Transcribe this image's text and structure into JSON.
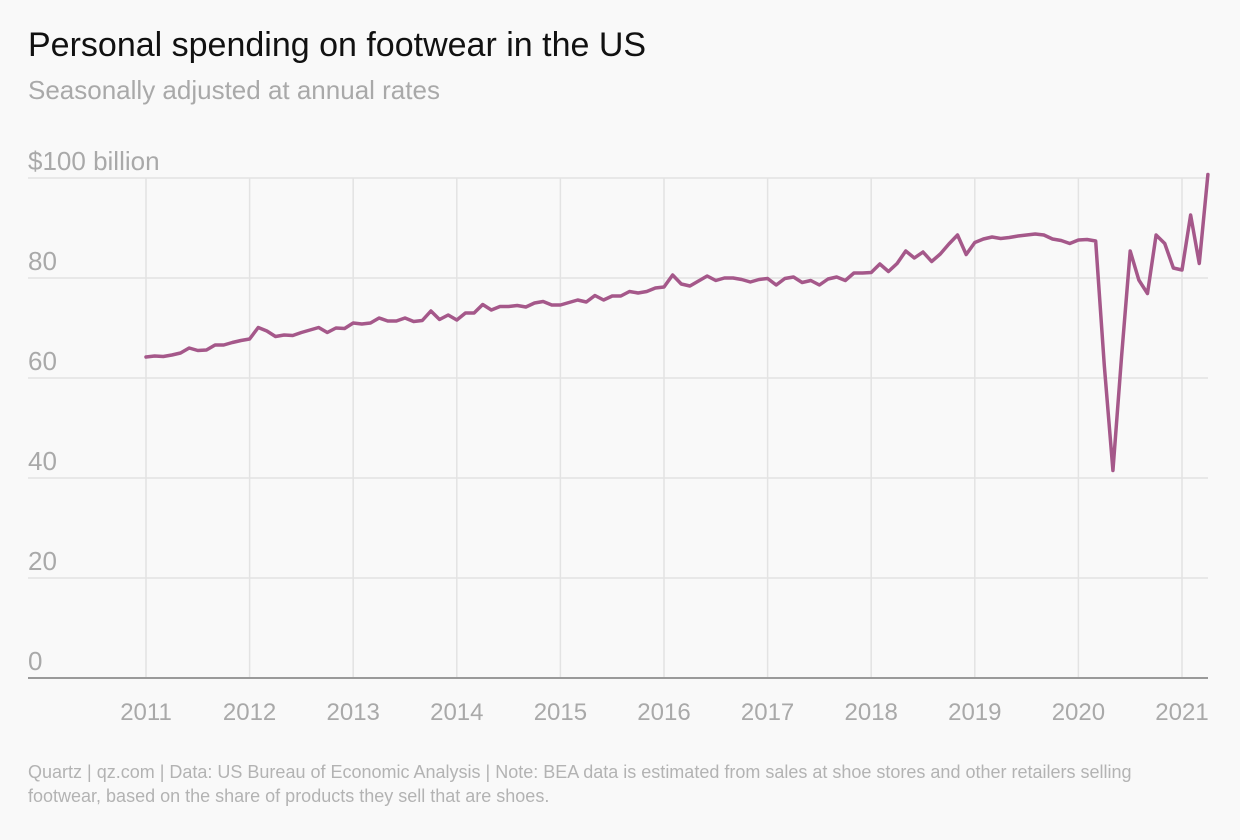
{
  "title": "Personal spending on footwear in the US",
  "subtitle": "Seasonally adjusted at annual rates",
  "source_note": "Quartz | qz.com | Data: US Bureau of Economic Analysis | Note: BEA data is estimated from sales at shoe stores and other retailers selling footwear, based on the share of products they sell that are shoes.",
  "colors": {
    "line": "#a5588a",
    "grid": "#e3e3e3",
    "baseline": "#9a9a9a",
    "tick_text": "#a9a9a9"
  },
  "chart_data": {
    "type": "line",
    "frequency": "monthly",
    "start": "2011-01",
    "ylim": [
      0,
      100
    ],
    "ylabel": "",
    "xlabel": "",
    "y_ticks": [
      0,
      20,
      40,
      60,
      80,
      100
    ],
    "y_tick_labels": [
      "0",
      "20",
      "40",
      "60",
      "80",
      "$100 billion"
    ],
    "x_tick_labels": [
      "2011",
      "2012",
      "2013",
      "2014",
      "2015",
      "2016",
      "2017",
      "2018",
      "2019",
      "2020",
      "2021"
    ],
    "grid": true,
    "series": [
      {
        "values": [
          64.2,
          64.4,
          64.3,
          64.6,
          65.0,
          66.0,
          65.5,
          65.6,
          66.6,
          66.6,
          67.1,
          67.5,
          67.8,
          70.1,
          69.4,
          68.3,
          68.6,
          68.5,
          69.1,
          69.6,
          70.1,
          69.1,
          70.0,
          69.9,
          71.0,
          70.8,
          71.0,
          72.0,
          71.4,
          71.4,
          72.0,
          71.3,
          71.5,
          73.4,
          71.7,
          72.6,
          71.6,
          73.0,
          73.0,
          74.7,
          73.6,
          74.3,
          74.3,
          74.5,
          74.2,
          75.0,
          75.3,
          74.6,
          74.6,
          75.1,
          75.6,
          75.2,
          76.5,
          75.6,
          76.4,
          76.4,
          77.3,
          77.0,
          77.3,
          78.0,
          78.2,
          80.6,
          78.8,
          78.4,
          79.4,
          80.4,
          79.5,
          80.0,
          80.0,
          79.7,
          79.2,
          79.7,
          79.9,
          78.6,
          79.9,
          80.2,
          79.1,
          79.5,
          78.6,
          79.8,
          80.2,
          79.5,
          81.0,
          81.0,
          81.1,
          82.8,
          81.3,
          82.9,
          85.4,
          84.0,
          85.2,
          83.3,
          84.8,
          86.8,
          88.6,
          84.7,
          87.1,
          87.8,
          88.2,
          87.9,
          88.1,
          88.4,
          88.6,
          88.8,
          88.6,
          87.8,
          87.5,
          86.9,
          87.6,
          87.7,
          87.4,
          62.5,
          41.5,
          64.3,
          85.4,
          79.6,
          76.9,
          88.6,
          86.9,
          82.0,
          81.6,
          92.6,
          82.9,
          100.7
        ]
      }
    ]
  }
}
